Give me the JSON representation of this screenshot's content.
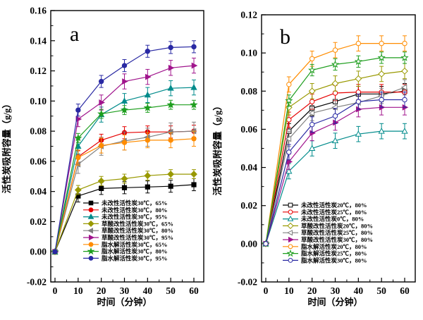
{
  "figure": {
    "background": "#ffffff",
    "text_color": "#000000"
  },
  "chart_data": [
    {
      "type": "line",
      "panel_label": "a",
      "xlabel": "时间（分钟）",
      "ylabel": "活性炭吸附容量（g/g）",
      "x": [
        0,
        10,
        20,
        30,
        40,
        50,
        60
      ],
      "xticks": [
        0,
        10,
        20,
        30,
        40,
        50,
        60
      ],
      "ylim": [
        -0.02,
        0.16
      ],
      "ytick_step": 0.02,
      "grid": false,
      "legend_position": "inside-bottom-right",
      "marker_fill": "solid",
      "series": [
        {
          "name": "未改性活性炭30℃，65%",
          "color": "#000000",
          "marker": "square",
          "values": [
            0,
            0.037,
            0.042,
            0.0425,
            0.043,
            0.0435,
            0.0445
          ],
          "err": 0.004
        },
        {
          "name": "未改性活性炭30℃，80%",
          "color": "#e60000",
          "marker": "circle",
          "values": [
            0,
            0.063,
            0.074,
            0.079,
            0.0795,
            0.0795,
            0.08
          ],
          "err": 0.004
        },
        {
          "name": "未改性活性炭30℃，95%",
          "color": "#008b8b",
          "marker": "triangle-up",
          "values": [
            0,
            0.07,
            0.091,
            0.1,
            0.104,
            0.1085,
            0.109
          ],
          "err": 0.005
        },
        {
          "name": "草酸改性活性炭30℃，65%",
          "color": "#999900",
          "marker": "diamond",
          "values": [
            0,
            0.041,
            0.047,
            0.0485,
            0.0505,
            0.0515,
            0.0515
          ],
          "err": 0.003
        },
        {
          "name": "草酸改性活性炭30℃，80%",
          "color": "#808080",
          "marker": "triangle-left",
          "values": [
            0,
            0.058,
            0.07,
            0.0735,
            0.076,
            0.0795,
            0.08
          ],
          "err": 0.006
        },
        {
          "name": "草酸改性活性炭30℃，95%",
          "color": "#a0148c",
          "marker": "triangle-right",
          "values": [
            0,
            0.088,
            0.099,
            0.113,
            0.116,
            0.122,
            0.1235
          ],
          "err": 0.005
        },
        {
          "name": "脂水解活性炭30℃，65%",
          "color": "#ff8c00",
          "marker": "circle",
          "values": [
            0,
            0.0625,
            0.0705,
            0.0725,
            0.074,
            0.074,
            0.075
          ],
          "err": 0.005
        },
        {
          "name": "脂水解活性炭30℃，80%",
          "color": "#1e9e1e",
          "marker": "star",
          "values": [
            0,
            0.0755,
            0.0915,
            0.094,
            0.0955,
            0.0975,
            0.0975
          ],
          "err": 0.003
        },
        {
          "name": "脂水解活性炭30℃，95%",
          "color": "#2929a3",
          "marker": "circle",
          "values": [
            0,
            0.094,
            0.113,
            0.1235,
            0.133,
            0.1355,
            0.136
          ],
          "err": 0.004
        }
      ]
    },
    {
      "type": "line",
      "panel_label": "b",
      "xlabel": "时间（分钟）",
      "ylabel": "活性炭吸附容量（g/g）",
      "x": [
        0,
        10,
        20,
        30,
        40,
        50,
        60
      ],
      "xticks": [
        0,
        10,
        20,
        30,
        40,
        50,
        60
      ],
      "ylim": [
        -0.02,
        0.12
      ],
      "ytick_step": 0.02,
      "grid": false,
      "legend_position": "inside-bottom-right",
      "marker_fill": "open",
      "series": [
        {
          "name": "未改性活性炭20℃，80%",
          "color": "#000000",
          "marker": "square",
          "values": [
            0,
            0.059,
            0.071,
            0.0745,
            0.0785,
            0.0785,
            0.08
          ],
          "err": 0.004
        },
        {
          "name": "未改性活性炭25℃，80%",
          "color": "#e60000",
          "marker": "circle",
          "values": [
            0,
            0.065,
            0.0745,
            0.079,
            0.0795,
            0.0795,
            0.0795
          ],
          "err": 0.004
        },
        {
          "name": "未改性活性炭0℃，80%",
          "color": "#008b8b",
          "marker": "triangle-up",
          "values": [
            0,
            0.038,
            0.05,
            0.054,
            0.0575,
            0.059,
            0.059
          ],
          "err": 0.004
        },
        {
          "name": "草酸改性活性炭20℃，80%",
          "color": "#999900",
          "marker": "diamond",
          "values": [
            0,
            0.0715,
            0.08,
            0.084,
            0.0865,
            0.089,
            0.0905
          ],
          "err": 0.004
        },
        {
          "name": "草酸改性活性炭25℃，80%",
          "color": "#808080",
          "marker": "triangle-left",
          "values": [
            0,
            0.055,
            0.0685,
            0.0715,
            0.074,
            0.0775,
            0.082
          ],
          "err": 0.004
        },
        {
          "name": "草酸改性活性炭30℃，80%",
          "color": "#a0148c",
          "marker": "triangle-right",
          "values": [
            0,
            0.043,
            0.058,
            0.0635,
            0.0705,
            0.0715,
            0.0715
          ],
          "err": 0.004,
          "fill": "solid"
        },
        {
          "name": "脂水解活性炭20℃，80%",
          "color": "#ff8c00",
          "marker": "circle",
          "values": [
            0,
            0.0835,
            0.097,
            0.1015,
            0.105,
            0.105,
            0.105
          ],
          "err": 0.004
        },
        {
          "name": "脂水解活性炭25℃，80%",
          "color": "#1e9e1e",
          "marker": "star",
          "values": [
            0,
            0.075,
            0.091,
            0.094,
            0.0955,
            0.0975,
            0.0975
          ],
          "err": 0.003
        },
        {
          "name": "脂水解活性炭30℃，80%",
          "color": "#2929a3",
          "marker": "circle",
          "values": [
            0,
            0.048,
            0.0625,
            0.067,
            0.0745,
            0.0755,
            0.0755
          ],
          "err": 0.004
        }
      ]
    }
  ]
}
